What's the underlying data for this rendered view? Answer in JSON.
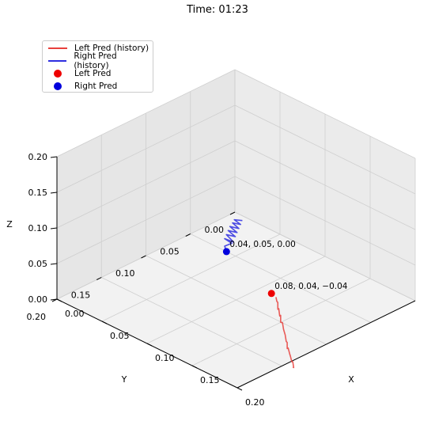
{
  "colors": {
    "left": "#e8403c",
    "right": "#2e2ee0",
    "left_dot": "#ee0000",
    "right_dot": "#0000dd"
  },
  "chart_data": {
    "type": "line",
    "projection": "3d",
    "title": "Time: 01:23",
    "xlabel": "X",
    "ylabel": "Y",
    "zlabel": "Z",
    "xlim": [
      0,
      0.2
    ],
    "ylim": [
      0,
      0.2
    ],
    "zlim": [
      0,
      0.2
    ],
    "xticks": [
      "0.00",
      "0.05",
      "0.10",
      "0.15",
      "0.20"
    ],
    "yticks": [
      "0.00",
      "0.05",
      "0.10",
      "0.15",
      "0.20"
    ],
    "zticks": [
      "0.00",
      "0.05",
      "0.10",
      "0.15",
      "0.20"
    ],
    "grid": true,
    "legend_position": "top-left",
    "legend": [
      {
        "label": "Left Pred (history)",
        "kind": "line",
        "color": "#e8403c"
      },
      {
        "label": "Right Pred (history)",
        "kind": "line",
        "color": "#2e2ee0"
      },
      {
        "label": "Left Pred",
        "kind": "marker",
        "color": "#ee0000"
      },
      {
        "label": "Right Pred",
        "kind": "marker",
        "color": "#0000dd"
      }
    ],
    "series": [
      {
        "name": "Left Pred (history)",
        "points": [
          [
            0.085,
            0.04,
            -0.042
          ],
          [
            0.088,
            0.042,
            -0.045
          ],
          [
            0.092,
            0.045,
            -0.042
          ],
          [
            0.095,
            0.048,
            -0.048
          ],
          [
            0.098,
            0.05,
            -0.044
          ],
          [
            0.102,
            0.053,
            -0.05
          ],
          [
            0.105,
            0.055,
            -0.046
          ],
          [
            0.108,
            0.058,
            -0.052
          ],
          [
            0.112,
            0.06,
            -0.049
          ],
          [
            0.115,
            0.062,
            -0.054
          ],
          [
            0.118,
            0.065,
            -0.051
          ],
          [
            0.122,
            0.067,
            -0.056
          ],
          [
            0.125,
            0.07,
            -0.053
          ],
          [
            0.128,
            0.072,
            -0.058
          ],
          [
            0.132,
            0.075,
            -0.055
          ],
          [
            0.135,
            0.078,
            -0.06
          ],
          [
            0.138,
            0.08,
            -0.056
          ],
          [
            0.142,
            0.082,
            -0.062
          ],
          [
            0.145,
            0.085,
            -0.058
          ],
          [
            0.15,
            0.088,
            -0.063
          ],
          [
            0.153,
            0.09,
            -0.06
          ],
          [
            0.156,
            0.092,
            -0.065
          ],
          [
            0.158,
            0.095,
            -0.061
          ]
        ]
      },
      {
        "name": "Right Pred (history)",
        "points": [
          [
            0.04,
            0.05,
            0.0
          ],
          [
            0.036,
            0.048,
            0.004
          ],
          [
            0.04,
            0.044,
            0.008
          ],
          [
            0.034,
            0.046,
            0.012
          ],
          [
            0.038,
            0.04,
            0.006
          ],
          [
            0.032,
            0.042,
            0.014
          ],
          [
            0.036,
            0.036,
            0.01
          ],
          [
            0.03,
            0.038,
            0.016
          ],
          [
            0.034,
            0.032,
            0.012
          ],
          [
            0.028,
            0.034,
            0.018
          ],
          [
            0.032,
            0.028,
            0.014
          ],
          [
            0.027,
            0.03,
            0.02
          ],
          [
            0.03,
            0.024,
            0.016
          ],
          [
            0.026,
            0.027,
            0.022
          ],
          [
            0.029,
            0.021,
            0.019
          ]
        ]
      },
      {
        "name": "Left Pred",
        "point": [
          0.08,
          0.04,
          -0.04
        ],
        "label": "0.08, 0.04, −0.04"
      },
      {
        "name": "Right Pred",
        "point": [
          0.04,
          0.05,
          0.0
        ],
        "label": "0.04, 0.05, 0.00"
      }
    ]
  }
}
